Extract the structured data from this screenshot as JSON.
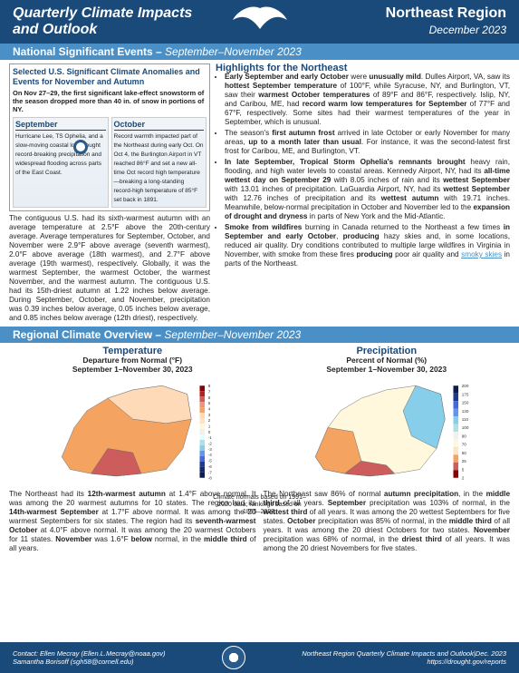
{
  "header": {
    "title_l1": "Quarterly Climate Impacts",
    "title_l2": "and Outlook",
    "region": "Northeast Region",
    "date": "December 2023"
  },
  "section1": {
    "title": "National Significant Events –",
    "range": "September–November 2023"
  },
  "selected": {
    "title": "Selected U.S. Significant Climate Anomalies and Events for November and Autumn",
    "sub": "On Nov 27–29, the first significant lake-effect snowstorm of the season dropped more than 40 in. of snow in portions of NY.",
    "sept_label": "September",
    "sept_text": "Hurricane Lee, TS Ophelia, and a slow-moving coastal low brought record-breaking precipitation and widespread flooding across parts of the East Coast.",
    "oct_label": "October",
    "oct_text": "Record warmth impacted part of the Northeast during early Oct. On Oct 4, the Burlington Airport in VT reached 86°F and set a new all-time Oct record high temperature—breaking a long-standing record-high temperature of 85°F set back in 1891.",
    "para": "The contiguous U.S. had its sixth-warmest autumn with an average temperature at 2.5°F above the 20th-century average. Average temperatures for September, October, and November were 2.9°F above average (seventh warmest), 2.0°F above average (18th warmest), and 2.7°F above average (19th warmest), respectively. Globally, it was the warmest September, the warmest October, the warmest November, and the warmest autumn. The contiguous U.S. had its 15th-driest autumn at 1.22 inches below average. During September, October, and November, precipitation was 0.39 inches below average, 0.05 inches below average, and 0.85 inches below average (12th driest), respectively."
  },
  "highlights": {
    "title": "Highlights for the Northeast",
    "b1": "<b>Early September and early October</b> were <b>unusually mild</b>. Dulles Airport, VA, saw its <b>hottest September temperature</b> of 100°F, while Syracuse, NY, and Burlington, VT, saw their <b>warmest October temperatures</b> of 89°F and 86°F, respectively. Islip, NY, and Caribou, ME, had <b>record warm low temperatures for September</b> of 77°F and 67°F, respectively. Some sites had their warmest temperatures of the year in September, which is unusual.",
    "b2": "The season's <b>first autumn frost</b> arrived in late October or early November for many areas, <b>up to a month later than usual</b>. For instance, it was the second-latest first frost for Caribou, ME, and Burlington, VT.",
    "b3": "<b>In late September, Tropical Storm Ophelia's remnants brought</b> heavy rain, flooding, and high water levels to coastal areas. Kennedy Airport, NY, had its <b>all-time wettest day on September 29</b> with 8.05 inches of rain and its <b>wettest September</b> with 13.01 inches of precipitation. LaGuardia Airport, NY, had its <b>wettest September</b> with 12.76 inches of precipitation and its <b>wettest autumn</b> with 19.71 inches. Meanwhile, below-normal precipitation in October and November led to the <b>expansion of drought and dryness</b> in parts of New York and the Mid-Atlantic.",
    "b4": "<b>Smoke from wildfires</b> burning in Canada returned to the Northeast a few times <b>in September and early October</b>, <b>producing</b> hazy skies and, in some locations, reduced air quality. Dry conditions contributed to multiple large wildfires in Virginia in November, with smoke from these fires <b>producing</b> poor air quality and <span class='link'>smoky skies</span> in parts of the Northeast."
  },
  "section2": {
    "title": "Regional Climate Overview –",
    "range": "September–November 2023"
  },
  "temp": {
    "title": "Temperature",
    "sub": "Departure from Normal (°F)",
    "range": "September 1–November 30, 2023",
    "normals": "Climate normals based on 1991–2020 data; rankings based on 1895–2023.",
    "legend_vals": [
      "8",
      "7",
      "6",
      "5",
      "4",
      "3",
      "2",
      "1",
      "0",
      "-1",
      "-2",
      "-3",
      "-4",
      "-5",
      "-6",
      "-7",
      "-8"
    ],
    "colors": [
      "#8b0000",
      "#b22222",
      "#cd5c5c",
      "#e9967a",
      "#f4a460",
      "#ffdab9",
      "#ffe4c4",
      "#fff8dc",
      "#f0f0f0",
      "#e0ffff",
      "#b0e0e6",
      "#87ceeb",
      "#6495ed",
      "#4169e1",
      "#1e3a8a",
      "#152a6e",
      "#0e1d50"
    ],
    "text": "The Northeast had its <b>12th-warmest autumn</b> at 1.4°F above normal. It was among the 20 warmest autumns for 10 states. The region had its <b>14th-warmest September</b> at 1.7°F above normal. It was among the 20 warmest Septembers for six states. The region had its <b>seventh-warmest October</b> at 4.0°F above normal. It was among the 20 warmest Octobers for 11 states. <b>November</b> was 1.6°F <b>below</b> normal, in the <b>middle third</b> of all years."
  },
  "precip": {
    "title": "Precipitation",
    "sub": "Percent of Normal (%)",
    "range": "September 1–November 30, 2023",
    "legend_vals": [
      "200",
      "175",
      "150",
      "130",
      "110",
      "100",
      "90",
      "70",
      "50",
      "25",
      "5",
      "2"
    ],
    "colors": [
      "#0e1d50",
      "#1e3a8a",
      "#4169e1",
      "#6495ed",
      "#87ceeb",
      "#b0e0e6",
      "#f0f0f0",
      "#fff8dc",
      "#ffe4c4",
      "#f4a460",
      "#cd5c5c",
      "#8b0000"
    ],
    "text": "The Northeast saw 86% of normal <b>autumn precipitation</b>, in the <b>middle third</b> of all years. <b>September</b> precipitation was 103% of normal, in the <b>wettest third</b> of all years. It was among the 20 wettest Septembers for five states. <b>October</b> precipitation was 85% of normal, in the <b>middle third</b> of all years. It was among the 20 driest Octobers for two states. <b>November</b> precipitation was 68% of normal, in the <b>driest third</b> of all years. It was among the 20 driest Novembers for five states."
  },
  "footer": {
    "contact_l1": "Contact:  Ellen Mecray (Ellen.L.Mecray@noaa.gov)",
    "contact_l2": "Samantha Borisoff (sgh58@cornell.edu)",
    "right_l1": "Northeast Region Quarterly Climate Impacts and Outlook|Dec. 2023",
    "right_l2": "https://drought.gov/reports"
  }
}
